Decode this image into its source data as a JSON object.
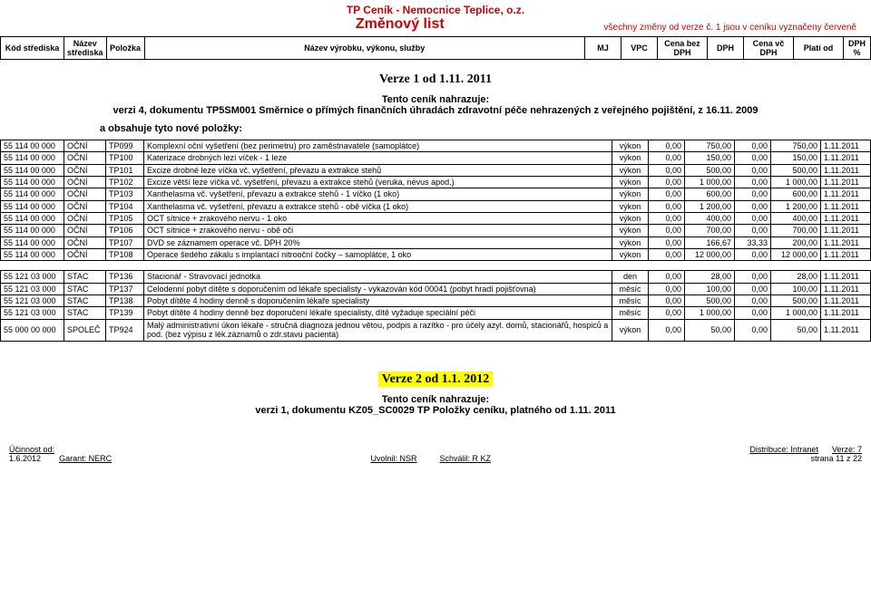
{
  "header": {
    "doc_title": "TP Ceník - Nemocnice Teplice, o.z.",
    "doc_subtitle": "Změnový list",
    "doc_note": "všechny změny od verze č. 1 jsou v ceníku vyznačeny červeně",
    "columns": {
      "kod": "Kód střediska",
      "nazev_stred": "Název střediska",
      "polozka": "Položka",
      "nazev_vyr": "Název výrobku, výkonu, služby",
      "mj": "MJ",
      "vpc": "VPC",
      "cena_bez": "Cena bez DPH",
      "dph": "DPH",
      "cena_vc": "Cena vč DPH",
      "plati_od": "Platí od",
      "dph_pct": "DPH %"
    }
  },
  "version1": {
    "title": "Verze 1 od 1.11. 2011",
    "replace_title": "Tento ceník nahrazuje:",
    "replace_text": "verzi 4, dokumentu TP5SM001 Směrnice o přímých finančních úhradách zdravotní péče nehrazených z veřejného pojištění, z 16.11. 2009",
    "new_items": "a obsahuje tyto nové položky:"
  },
  "rows1": [
    {
      "kod": "55 114 00 000",
      "stred": "OČNÍ",
      "pol": "TP099",
      "desc": "Komplexní oční vyšetření (bez perimetru) pro zaměstnavatele (samoplátce)",
      "mj": "výkon",
      "vpc": "0,00",
      "cbez": "750,00",
      "dph": "0,00",
      "cvc": "750,00",
      "plod": "1.11.2011"
    },
    {
      "kod": "55 114 00 000",
      "stred": "OČNÍ",
      "pol": "TP100",
      "desc": "Katerizace drobných lezí víček  - 1 leze",
      "mj": "výkon",
      "vpc": "0,00",
      "cbez": "150,00",
      "dph": "0,00",
      "cvc": "150,00",
      "plod": "1.11.2011"
    },
    {
      "kod": "55 114 00 000",
      "stred": "OČNÍ",
      "pol": "TP101",
      "desc": "Excize drobné leze víčka vč. vyšetření, převazu a extrakce stehů",
      "mj": "výkon",
      "vpc": "0,00",
      "cbez": "500,00",
      "dph": "0,00",
      "cvc": "500,00",
      "plod": "1.11.2011"
    },
    {
      "kod": "55 114 00 000",
      "stred": "OČNÍ",
      "pol": "TP102",
      "desc": "Excize větší leze víčka vč. vyšetření, převazu a extrakce stehů (veruka, névus apod.)",
      "mj": "výkon",
      "vpc": "0,00",
      "cbez": "1 000,00",
      "dph": "0,00",
      "cvc": "1 000,00",
      "plod": "1.11.2011"
    },
    {
      "kod": "55 114 00 000",
      "stred": "OČNÍ",
      "pol": "TP103",
      "desc": "Xanthelasma vč. vyšetření, převazu a extrakce stehů - 1 víčko (1 oko)",
      "mj": "výkon",
      "vpc": "0,00",
      "cbez": "600,00",
      "dph": "0,00",
      "cvc": "600,00",
      "plod": "1.11.2011"
    },
    {
      "kod": "55 114 00 000",
      "stred": "OČNÍ",
      "pol": "TP104",
      "desc": "Xanthelasma vč. vyšetření, převazu a extrakce stehů - obě víčka (1 oko)",
      "mj": "výkon",
      "vpc": "0,00",
      "cbez": "1 200,00",
      "dph": "0,00",
      "cvc": "1 200,00",
      "plod": "1.11.2011"
    },
    {
      "kod": "55 114 00 000",
      "stred": "OČNÍ",
      "pol": "TP105",
      "desc": "OCT sítnice + zrakového nervu - 1 oko",
      "mj": "výkon",
      "vpc": "0,00",
      "cbez": "400,00",
      "dph": "0,00",
      "cvc": "400,00",
      "plod": "1.11.2011"
    },
    {
      "kod": "55 114 00 000",
      "stred": "OČNÍ",
      "pol": "TP106",
      "desc": "OCT sítnice + zrakového nervu - obě oči",
      "mj": "výkon",
      "vpc": "0,00",
      "cbez": "700,00",
      "dph": "0,00",
      "cvc": "700,00",
      "plod": "1.11.2011"
    },
    {
      "kod": "55 114 00 000",
      "stred": "OČNÍ",
      "pol": "TP107",
      "desc": "DVD se záznamem operace vč. DPH 20%",
      "mj": "výkon",
      "vpc": "0,00",
      "cbez": "166,67",
      "dph": "33,33",
      "cvc": "200,00",
      "plod": "1.11.2011"
    },
    {
      "kod": "55 114 00 000",
      "stred": "OČNÍ",
      "pol": "TP108",
      "desc": "Operace šedého zákalu s implantací nitrooční čočky – samoplátce, 1 oko",
      "mj": "výkon",
      "vpc": "0,00",
      "cbez": "12 000,00",
      "dph": "0,00",
      "cvc": "12 000,00",
      "plod": "1.11.2011"
    }
  ],
  "rows2": [
    {
      "kod": "55 121 03 000",
      "stred": "STAC",
      "pol": "TP136",
      "desc": "Stacionář - Stravovací jednotka",
      "mj": "den",
      "vpc": "0,00",
      "cbez": "28,00",
      "dph": "0,00",
      "cvc": "28,00",
      "plod": "1.11.2011"
    },
    {
      "kod": "55 121 03 000",
      "stred": "STAC",
      "pol": "TP137",
      "desc": "Celodenní pobyt dítěte s doporučením od lékaře specialisty - vykazován kód 00041 (pobyt hradí pojišťovna)",
      "mj": "měsíc",
      "vpc": "0,00",
      "cbez": "100,00",
      "dph": "0,00",
      "cvc": "100,00",
      "plod": "1.11.2011"
    },
    {
      "kod": "55 121 03 000",
      "stred": "STAC",
      "pol": "TP138",
      "desc": "Pobyt dítěte 4 hodiny denně s doporučením lékaře specialisty",
      "mj": "měsíc",
      "vpc": "0,00",
      "cbez": "500,00",
      "dph": "0,00",
      "cvc": "500,00",
      "plod": "1.11.2011"
    },
    {
      "kod": "55 121 03 000",
      "stred": "STAC",
      "pol": "TP139",
      "desc": "Pobyt dítěte 4 hodiny denně bez doporučení lékaře specialisty, dítě vyžaduje speciální péči",
      "mj": "měsíc",
      "vpc": "0,00",
      "cbez": "1 000,00",
      "dph": "0,00",
      "cvc": "1 000,00",
      "plod": "1.11.2011"
    },
    {
      "kod": "55 000 00 000",
      "stred": "SPOLEČ",
      "pol": "TP924",
      "desc": "Malý administrativní úkon lékaře - stručná diagnoza jednou větou, podpis a razítko - pro účely azyl. domů, stacionářů, hospiců a pod. (bez výpisu z lék.záznamů o zdr.stavu pacienta)",
      "mj": "výkon",
      "vpc": "0,00",
      "cbez": "50,00",
      "dph": "0,00",
      "cvc": "50,00",
      "plod": "1.11.2011"
    }
  ],
  "version2": {
    "title": "Verze 2 od 1.1. 2012",
    "replace_title": "Tento ceník nahrazuje:",
    "replace_text": "verzi 1, dokumentu KZ05_SC0029 TP Položky ceníku, platného od 1.11. 2011"
  },
  "footer": {
    "eff_label": "Účinnost od:",
    "eff_date": "1.6.2012",
    "garant": "Garant: NERC",
    "uvolnil": "Uvolnil: NSR",
    "schvalil": "Schválil: R KZ",
    "dist": "Distribuce: Intranet",
    "verze": "Verze: 7",
    "page": "strana  11 z 22"
  },
  "style": {
    "accent_color": "#c00000",
    "highlight_color": "#ffff00",
    "border_color": "#000000",
    "font_body_pt": 9,
    "font_header_pt": 12,
    "font_subtitle_pt": 16
  }
}
